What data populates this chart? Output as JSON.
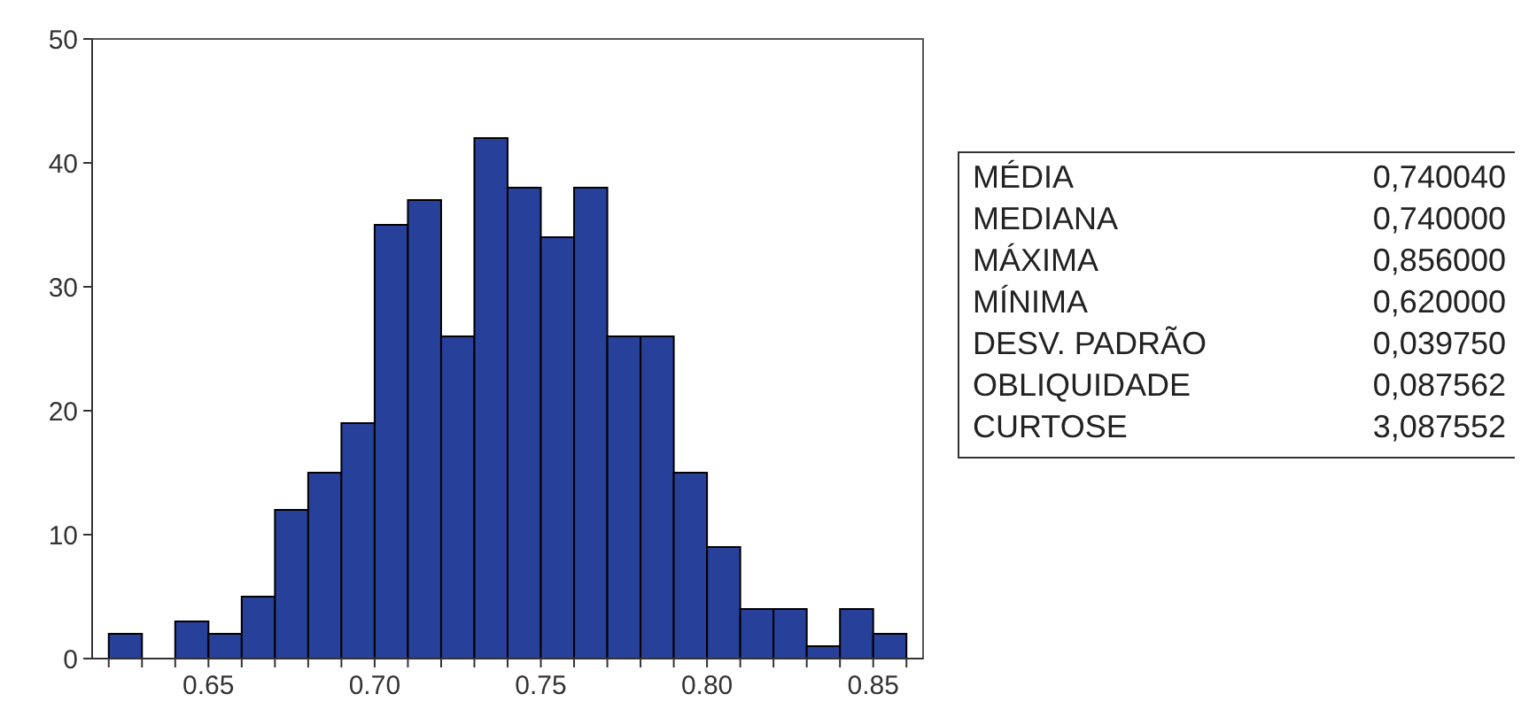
{
  "chart_data": {
    "type": "histogram",
    "bins": [
      0.62,
      0.63,
      0.64,
      0.65,
      0.66,
      0.67,
      0.68,
      0.69,
      0.7,
      0.71,
      0.72,
      0.73,
      0.74,
      0.75,
      0.76,
      0.77,
      0.78,
      0.79,
      0.8,
      0.81,
      0.82,
      0.83,
      0.84,
      0.85,
      0.86
    ],
    "values": [
      2,
      0,
      3,
      2,
      5,
      12,
      15,
      19,
      35,
      37,
      26,
      42,
      38,
      34,
      38,
      26,
      26,
      15,
      9,
      4,
      4,
      1,
      4,
      2
    ],
    "color": "#27409a",
    "xlim": [
      0.615,
      0.865
    ],
    "xticks": [
      {
        "value": 0.62,
        "label": null
      },
      {
        "value": 0.63,
        "label": null
      },
      {
        "value": 0.64,
        "label": null
      },
      {
        "value": 0.65,
        "label": "0.65"
      },
      {
        "value": 0.66,
        "label": null
      },
      {
        "value": 0.67,
        "label": null
      },
      {
        "value": 0.68,
        "label": null
      },
      {
        "value": 0.69,
        "label": null
      },
      {
        "value": 0.7,
        "label": "0.70"
      },
      {
        "value": 0.71,
        "label": null
      },
      {
        "value": 0.72,
        "label": null
      },
      {
        "value": 0.73,
        "label": null
      },
      {
        "value": 0.74,
        "label": null
      },
      {
        "value": 0.75,
        "label": "0.75"
      },
      {
        "value": 0.76,
        "label": null
      },
      {
        "value": 0.77,
        "label": null
      },
      {
        "value": 0.78,
        "label": null
      },
      {
        "value": 0.79,
        "label": null
      },
      {
        "value": 0.8,
        "label": "0.80"
      },
      {
        "value": 0.81,
        "label": null
      },
      {
        "value": 0.82,
        "label": null
      },
      {
        "value": 0.83,
        "label": null
      },
      {
        "value": 0.84,
        "label": null
      },
      {
        "value": 0.85,
        "label": "0.85"
      },
      {
        "value": 0.86,
        "label": null
      }
    ],
    "ylim": [
      0,
      50
    ],
    "yticks": [
      0,
      10,
      20,
      30,
      40,
      50
    ],
    "grid": false,
    "annotations": [
      "MÉDIA",
      "0,740040",
      "MEDIANA",
      "0,740000",
      "MÁXIMA",
      "0,856000",
      "MÍNIMA",
      "0,620000",
      "DESV. PADRÃO",
      "0,039750",
      "OBLIQUIDADE",
      "0,087562",
      "CURTOSE",
      "3,087552"
    ]
  }
}
